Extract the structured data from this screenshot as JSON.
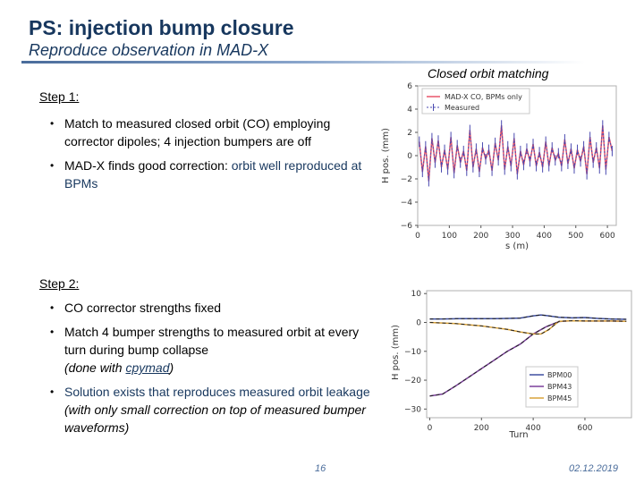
{
  "slide": {
    "title": "PS: injection bump closure",
    "subtitle": "Reproduce observation in MAD-X",
    "page_number": "16",
    "date": "02.12.2019",
    "accent_color": "#17375e"
  },
  "step1": {
    "heading": "Step 1:",
    "bullets": [
      {
        "text": "Match to measured closed orbit (CO) employing corrector dipoles; 4 injection bumpers are off"
      },
      {
        "pre": "MAD-X finds good correction: ",
        "em": "orbit well reproduced at BPMs"
      }
    ]
  },
  "step2": {
    "heading": "Step 2:",
    "bullets": [
      {
        "text": "CO corrector strengths fixed"
      },
      {
        "text": "Match 4 bumper strengths to measured orbit at every turn during bump collapse",
        "note_pre": "(done with ",
        "note_link": "cpymad",
        "note_post": ")"
      },
      {
        "em": "Solution exists that reproduces measured orbit leakage",
        "note": " (with only small correction on top of measured bumper waveforms)"
      }
    ]
  },
  "chart_data": [
    {
      "type": "line",
      "caption": "Closed orbit matching",
      "xlabel": "s (m)",
      "ylabel": "H pos. (mm)",
      "xlim": [
        0,
        628
      ],
      "ylim": [
        -6,
        6
      ],
      "xticks": [
        "0",
        "100",
        "200",
        "300",
        "400",
        "500",
        "600"
      ],
      "yticks": [
        "6",
        "4",
        "2",
        "0",
        "−2",
        "−4",
        "−6"
      ],
      "legend_position": "top-left",
      "series": [
        {
          "name": "MAD-X CO, BPMs only",
          "color": "#e8566a",
          "style": "line",
          "x": [
            5,
            15,
            25,
            35,
            45,
            55,
            65,
            75,
            85,
            95,
            105,
            115,
            125,
            135,
            145,
            155,
            165,
            175,
            185,
            195,
            205,
            215,
            225,
            235,
            245,
            255,
            265,
            275,
            285,
            295,
            305,
            315,
            325,
            335,
            345,
            355,
            365,
            375,
            385,
            395,
            405,
            415,
            425,
            435,
            445,
            455,
            465,
            475,
            485,
            495,
            505,
            515,
            525,
            535,
            545,
            555,
            565,
            575,
            585,
            595,
            605,
            615
          ],
          "values": [
            1.2,
            -1.4,
            0.8,
            -2.2,
            1.5,
            -0.6,
            1.3,
            -1.0,
            0.5,
            -1.2,
            1.6,
            -1.5,
            0.9,
            -0.6,
            0.4,
            -1.3,
            2.2,
            -1.0,
            0.6,
            -1.4,
            0.7,
            -0.3,
            0.5,
            -1.3,
            1.1,
            -0.4,
            2.6,
            -1.2,
            0.8,
            -0.9,
            1.5,
            -1.6,
            0.4,
            -0.8,
            0.6,
            -0.5,
            1.0,
            -0.9,
            0.3,
            -1.0,
            1.2,
            -0.9,
            0.7,
            -0.4,
            0.2,
            -0.9,
            1.4,
            -0.7,
            0.6,
            -1.1,
            0.5,
            -0.5,
            0.8,
            -1.6,
            1.6,
            -0.6,
            0.7,
            -1.1,
            2.6,
            -1.2,
            1.6,
            0.4
          ]
        },
        {
          "name": "Measured",
          "color": "#4a4ab0",
          "style": "errorbar",
          "x": [
            5,
            15,
            25,
            35,
            45,
            55,
            65,
            75,
            85,
            95,
            105,
            115,
            125,
            135,
            145,
            155,
            165,
            175,
            185,
            195,
            205,
            215,
            225,
            235,
            245,
            255,
            265,
            275,
            285,
            295,
            305,
            315,
            325,
            335,
            345,
            355,
            365,
            375,
            385,
            395,
            405,
            415,
            425,
            435,
            445,
            455,
            465,
            475,
            485,
            495,
            505,
            515,
            525,
            535,
            545,
            555,
            565,
            575,
            585,
            595,
            605,
            615
          ],
          "values": [
            1.2,
            -1.4,
            0.8,
            -2.2,
            1.5,
            -0.6,
            1.3,
            -1.0,
            0.5,
            -1.2,
            1.6,
            -1.5,
            0.9,
            -0.6,
            0.4,
            -1.3,
            2.2,
            -1.0,
            0.6,
            -1.4,
            0.7,
            -0.3,
            0.5,
            -1.3,
            1.1,
            -0.4,
            2.6,
            -1.2,
            0.8,
            -0.9,
            1.5,
            -1.6,
            0.4,
            -0.8,
            0.6,
            -0.5,
            1.0,
            -0.9,
            0.3,
            -1.0,
            1.2,
            -0.9,
            0.7,
            -0.4,
            0.2,
            -0.9,
            1.4,
            -0.7,
            0.6,
            -1.1,
            0.5,
            -0.5,
            0.8,
            -1.6,
            1.6,
            -0.6,
            0.7,
            -1.1,
            2.6,
            -1.2,
            1.6,
            0.4
          ]
        }
      ]
    },
    {
      "type": "line",
      "xlabel": "Turn",
      "ylabel": "H pos. (mm)",
      "xlim": [
        -12,
        780
      ],
      "ylim": [
        -33,
        11
      ],
      "xticks": [
        "0",
        "200",
        "400",
        "600"
      ],
      "yticks": [
        "10",
        "0",
        "−10",
        "−20",
        "−30"
      ],
      "legend_position": "bottom-right",
      "series": [
        {
          "name": "BPM00",
          "color": "#3f4fa0",
          "x": [
            0,
            50,
            100,
            150,
            200,
            250,
            300,
            350,
            400,
            430,
            450,
            500,
            550,
            600,
            650,
            700,
            760
          ],
          "values": [
            1.2,
            1.2,
            1.3,
            1.3,
            1.3,
            1.3,
            1.4,
            1.5,
            2.3,
            2.6,
            2.4,
            1.8,
            1.6,
            1.7,
            1.4,
            1.2,
            1.1
          ]
        },
        {
          "name": "BPM43",
          "color": "#7a3f9a",
          "x": [
            0,
            50,
            100,
            150,
            200,
            250,
            300,
            350,
            400,
            450,
            500,
            550,
            600,
            650,
            700,
            760
          ],
          "values": [
            -25.5,
            -24.8,
            -22.0,
            -19.0,
            -16.0,
            -13.0,
            -10.0,
            -7.5,
            -4.0,
            -1.5,
            0.3,
            0.6,
            0.5,
            0.5,
            0.5,
            0.4
          ]
        },
        {
          "name": "BPM45",
          "color": "#d9a23a",
          "x": [
            0,
            50,
            100,
            150,
            200,
            250,
            300,
            350,
            400,
            430,
            460,
            480,
            500,
            550,
            600,
            650,
            700,
            760
          ],
          "values": [
            0.0,
            -0.2,
            -0.4,
            -0.8,
            -1.2,
            -1.8,
            -2.4,
            -3.3,
            -4.0,
            -4.0,
            -2.5,
            -1.0,
            0.4,
            0.6,
            0.5,
            0.5,
            0.5,
            0.4
          ]
        }
      ]
    }
  ]
}
